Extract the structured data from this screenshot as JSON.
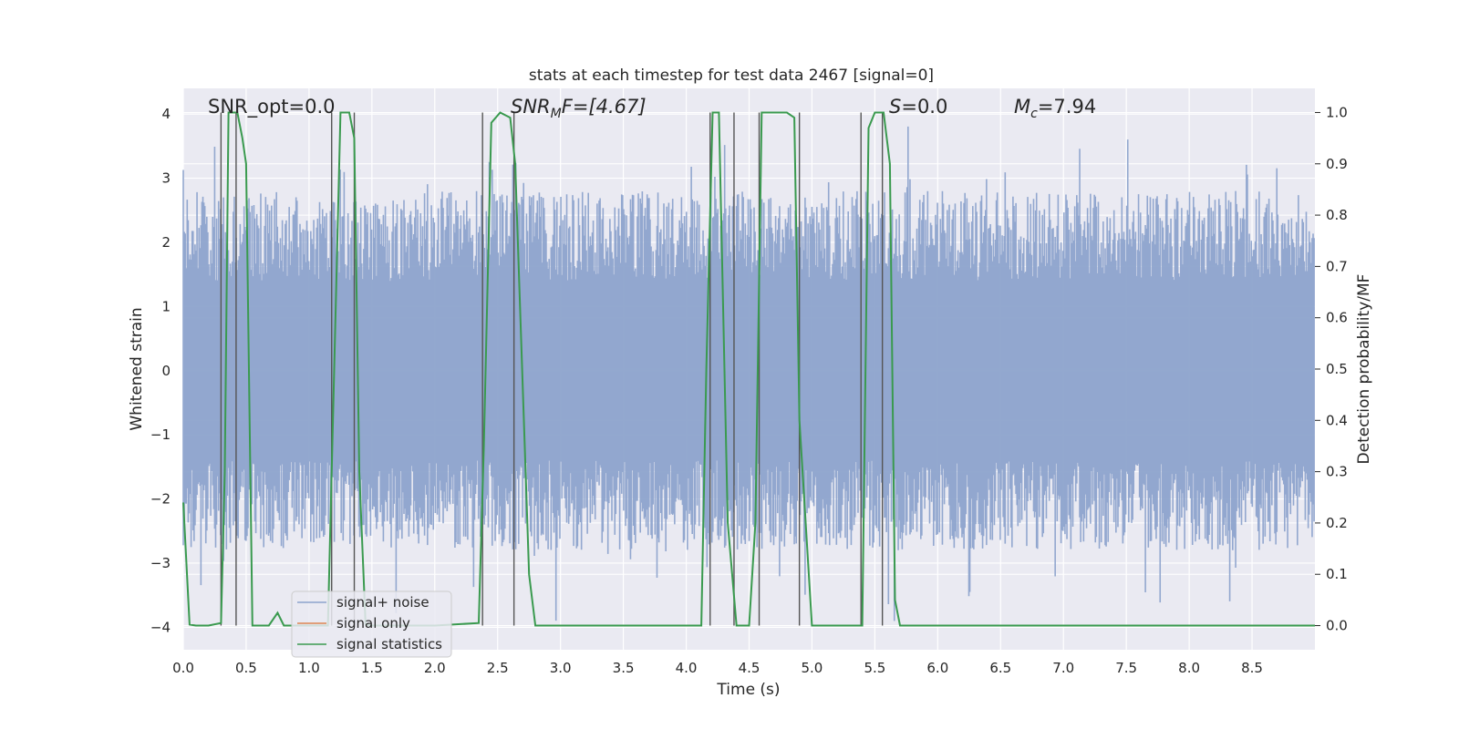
{
  "chart_data": {
    "type": "line",
    "title": "stats at each timestep for test data 2467 [signal=0]",
    "xlabel": "Time (s)",
    "ylabel": "Whitened strain",
    "y2label": "Detection probability/MF",
    "xlim": [
      0,
      9.0
    ],
    "ylim": [
      -4.35,
      4.4
    ],
    "y2lim": [
      -0.047,
      1.047
    ],
    "xticks": [
      0.0,
      0.5,
      1.0,
      1.5,
      2.0,
      2.5,
      3.0,
      3.5,
      4.0,
      4.5,
      5.0,
      5.5,
      6.0,
      6.5,
      7.0,
      7.5,
      8.0,
      8.5
    ],
    "xtick_labels": [
      "0.0",
      "0.5",
      "1.0",
      "1.5",
      "2.0",
      "2.5",
      "3.0",
      "3.5",
      "4.0",
      "4.5",
      "5.0",
      "5.5",
      "6.0",
      "6.5",
      "7.0",
      "7.5",
      "8.0",
      "8.5"
    ],
    "yticks": [
      -4,
      -3,
      -2,
      -1,
      0,
      1,
      2,
      3,
      4
    ],
    "ytick_labels": [
      "−4",
      "−3",
      "−2",
      "−1",
      "0",
      "1",
      "2",
      "3",
      "4"
    ],
    "y2ticks": [
      0.0,
      0.1,
      0.2,
      0.3,
      0.4,
      0.5,
      0.6,
      0.7,
      0.8,
      0.9,
      1.0
    ],
    "y2tick_labels": [
      "0.0",
      "0.1",
      "0.2",
      "0.3",
      "0.4",
      "0.5",
      "0.6",
      "0.7",
      "0.8",
      "0.9",
      "1.0"
    ],
    "annotations": {
      "snr_opt": "SNR_opt=0.0",
      "snr_mf_main": "SNR",
      "snr_mf_sub": "M",
      "snr_mf_tail": "F=[4.67]",
      "s_main": "S",
      "s_tail": "=0.0",
      "mc_main": "M",
      "mc_sub": "c",
      "mc_tail": "=7.94"
    },
    "legend": {
      "position": "lower-left",
      "entries": [
        "signal+ noise",
        "signal only",
        "signal statistics"
      ]
    },
    "colors": {
      "noise": "#8da3cc",
      "signal_only": "#dd8452",
      "stats": "#3a9a4f",
      "vlines": "#555555",
      "plot_bg": "#eaeaf2",
      "grid": "#ffffff"
    },
    "noise_envelope": {
      "duration_s": 9.0,
      "sample_step_s": 0.0078,
      "typical_abs_max": 2.5,
      "peak_max": 4.0,
      "peak_min": -3.9
    },
    "series": [
      {
        "name": "signal statistics",
        "axis": "right",
        "x": [
          0.0,
          0.05,
          0.1,
          0.2,
          0.3,
          0.33,
          0.36,
          0.43,
          0.47,
          0.5,
          0.55,
          0.6,
          0.68,
          0.75,
          0.8,
          0.85,
          1.0,
          1.1,
          1.15,
          1.2,
          1.25,
          1.32,
          1.36,
          1.4,
          1.45,
          1.5,
          2.0,
          2.35,
          2.39,
          2.45,
          2.52,
          2.6,
          2.64,
          2.75,
          2.8,
          2.85,
          2.9,
          3.5,
          4.0,
          4.12,
          4.16,
          4.21,
          4.26,
          4.33,
          4.4,
          4.45,
          4.5,
          4.55,
          4.6,
          4.65,
          4.8,
          4.86,
          4.9,
          5.0,
          5.4,
          5.45,
          5.5,
          5.57,
          5.62,
          5.66,
          5.7,
          6.0,
          7.0,
          8.0,
          9.0
        ],
        "y": [
          0.24,
          0.002,
          0.0,
          0.0,
          0.005,
          0.3,
          1.0,
          1.0,
          0.95,
          0.9,
          0.0,
          0.0,
          0.0,
          0.025,
          0.0,
          0.0,
          0.0,
          0.0,
          0.0,
          0.5,
          1.0,
          1.0,
          0.95,
          0.3,
          0.002,
          0.0,
          0.0,
          0.005,
          0.35,
          0.98,
          1.0,
          0.99,
          0.9,
          0.1,
          0.0,
          0.0,
          0.0,
          0.0,
          0.0,
          0.0,
          0.5,
          1.0,
          1.0,
          0.2,
          0.0,
          0.0,
          0.0,
          0.2,
          1.0,
          1.0,
          1.0,
          0.99,
          0.4,
          0.0,
          0.0,
          0.97,
          1.0,
          1.0,
          0.9,
          0.05,
          0.0,
          0.0,
          0.0,
          0.0,
          0.0
        ]
      },
      {
        "name": "signal only",
        "axis": "left",
        "x": [
          0.0,
          9.0
        ],
        "y": [
          0.0,
          0.0
        ]
      }
    ],
    "vlines_x": [
      0.3,
      0.42,
      1.18,
      1.36,
      2.38,
      2.63,
      4.19,
      4.38,
      4.58,
      4.9,
      5.39,
      5.56
    ]
  }
}
